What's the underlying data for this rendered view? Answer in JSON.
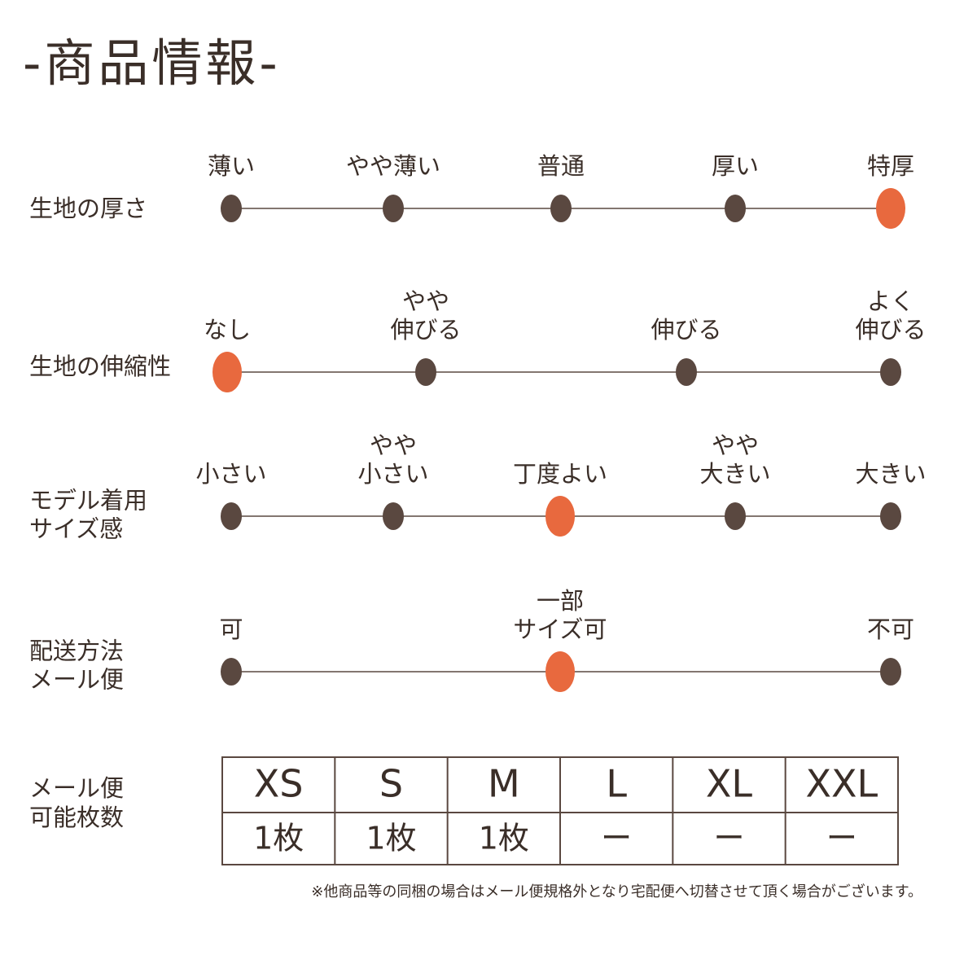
{
  "header": {
    "title": "-商品情報-"
  },
  "scales": [
    {
      "label": [
        "生地の厚さ"
      ],
      "options": [
        {
          "label": [
            "薄い"
          ],
          "selected": false
        },
        {
          "label": [
            "やや薄い"
          ],
          "selected": false
        },
        {
          "label": [
            "普通"
          ],
          "selected": false
        },
        {
          "label": [
            "厚い"
          ],
          "selected": false
        },
        {
          "label": [
            "特厚"
          ],
          "selected": true
        }
      ]
    },
    {
      "label": [
        "生地の伸縮性"
      ],
      "options": [
        {
          "label": [
            "なし"
          ],
          "selected": true
        },
        {
          "label": [
            "やや",
            "伸びる"
          ],
          "selected": false
        },
        {
          "label": [
            "伸びる"
          ],
          "selected": false
        },
        {
          "label": [
            "よく",
            "伸びる"
          ],
          "selected": false
        }
      ]
    },
    {
      "label": [
        "モデル着用",
        "サイズ感"
      ],
      "options": [
        {
          "label": [
            "小さい"
          ],
          "selected": false
        },
        {
          "label": [
            "やや",
            "小さい"
          ],
          "selected": false
        },
        {
          "label": [
            "丁度よい"
          ],
          "selected": true
        },
        {
          "label": [
            "やや",
            "大きい"
          ],
          "selected": false
        },
        {
          "label": [
            "大きい"
          ],
          "selected": false
        }
      ]
    },
    {
      "label": [
        "配送方法",
        "メール便"
      ],
      "options": [
        {
          "label": [
            "可"
          ],
          "selected": false
        },
        {
          "label": [
            "一部",
            "サイズ可"
          ],
          "selected": true
        },
        {
          "label": [
            "不可"
          ],
          "selected": false
        }
      ]
    }
  ],
  "table": {
    "label": [
      "メール便",
      "可能枚数"
    ],
    "header": [
      "XS",
      "S",
      "M",
      "L",
      "XL",
      "XXL"
    ],
    "rows": [
      [
        "1枚",
        "1枚",
        "1枚",
        "ー",
        "ー",
        "ー"
      ]
    ]
  },
  "note": "※他商品等の同梱の場合はメール便規格外となり宅配便へ切替させて頂く場合がございます。"
}
